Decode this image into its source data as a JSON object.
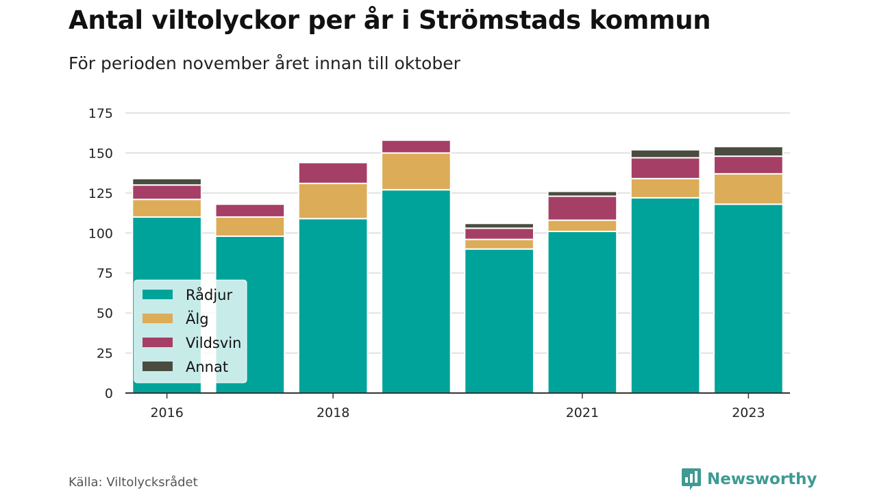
{
  "title": "Antal viltolyckor per år i Strömstads kommun",
  "subtitle": "För perioden november året innan till oktober",
  "source": "Källa: Viltolycksrådet",
  "brand": "Newsworthy",
  "colors": {
    "Rådjur": "#00a39a",
    "Älg": "#dcac58",
    "Vildsvin": "#a53f66",
    "Annat": "#4a4c3f",
    "brand": "#3e9a93"
  },
  "chart_data": {
    "type": "bar",
    "stacked": true,
    "categories": [
      "2016",
      "2017",
      "2018",
      "2019",
      "2020",
      "2021",
      "2022",
      "2023"
    ],
    "x_tick_labels": [
      "2016",
      "",
      "2018",
      "",
      "",
      "2021",
      "",
      "2023"
    ],
    "series": [
      {
        "name": "Rådjur",
        "values": [
          110,
          98,
          109,
          127,
          90,
          101,
          122,
          118
        ]
      },
      {
        "name": "Älg",
        "values": [
          11,
          12,
          22,
          23,
          6,
          7,
          12,
          19
        ]
      },
      {
        "name": "Vildsvin",
        "values": [
          9,
          8,
          13,
          8,
          7,
          15,
          13,
          11
        ]
      },
      {
        "name": "Annat",
        "values": [
          4,
          0,
          0,
          0,
          3,
          3,
          5,
          6
        ]
      }
    ],
    "ylim": [
      0,
      175
    ],
    "yticks": [
      0,
      25,
      50,
      75,
      100,
      125,
      150,
      175
    ],
    "grid": true,
    "legend": "bottom-left, inside plot"
  }
}
